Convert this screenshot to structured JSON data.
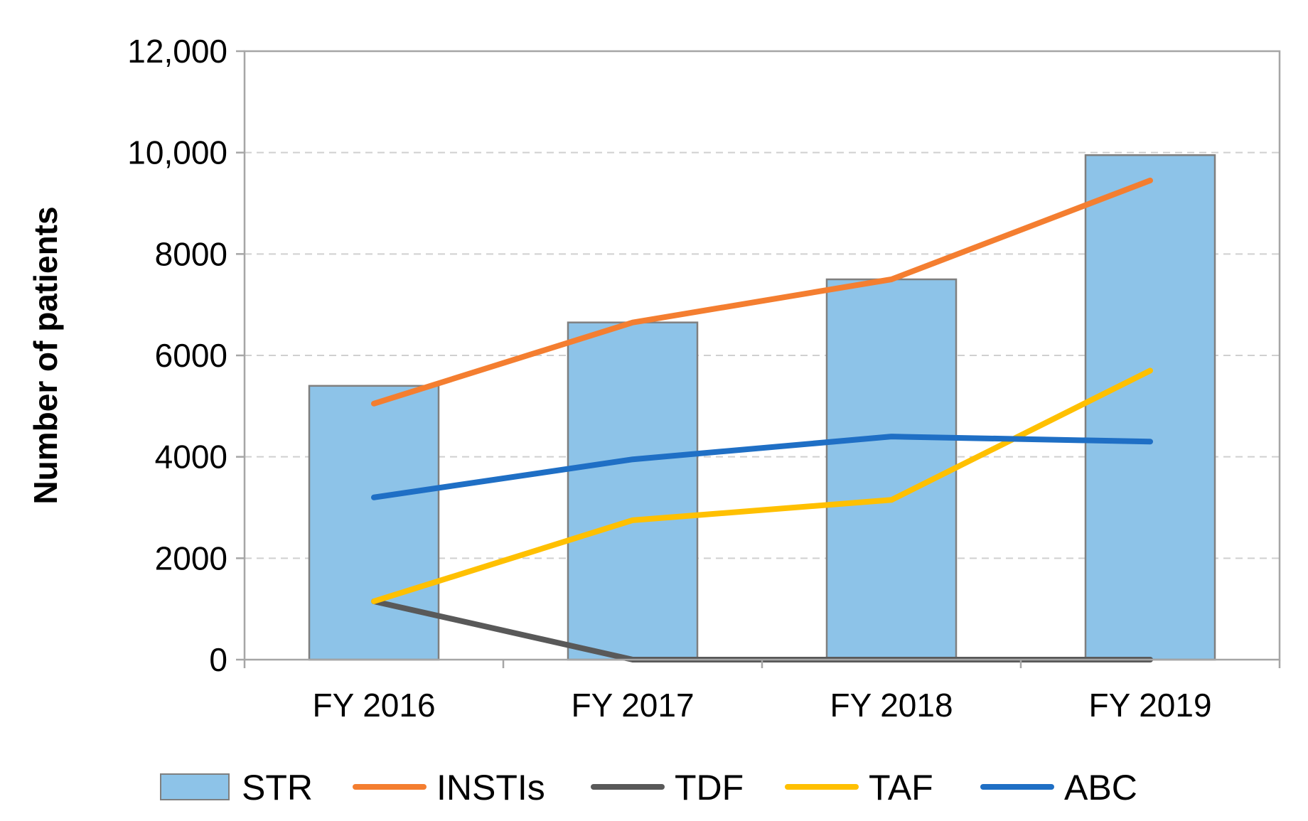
{
  "chart_data": {
    "type": "bar",
    "title": "",
    "xlabel": "",
    "ylabel": "Number of patients",
    "ylim": [
      0,
      12000
    ],
    "yticks": [
      0,
      2000,
      4000,
      6000,
      8000,
      10000,
      12000
    ],
    "ytick_labels": [
      "0",
      "2000",
      "4000",
      "6000",
      "8000",
      "10,000",
      "12,000"
    ],
    "grid": true,
    "legend_position": "bottom",
    "categories": [
      "FY 2016",
      "FY 2017",
      "FY 2018",
      "FY 2019"
    ],
    "series": [
      {
        "name": "STR",
        "kind": "bar",
        "color": "#8DC3E8",
        "values": [
          5400,
          6650,
          7500,
          9950
        ]
      },
      {
        "name": "INSTIs",
        "kind": "line",
        "color": "#F47E30",
        "values": [
          5050,
          6650,
          7500,
          9450
        ]
      },
      {
        "name": "TDF",
        "kind": "line",
        "color": "#595959",
        "values": [
          1150,
          0,
          0,
          0
        ]
      },
      {
        "name": "TAF",
        "kind": "line",
        "color": "#FFC000",
        "values": [
          1150,
          2750,
          3150,
          5700
        ]
      },
      {
        "name": "ABC",
        "kind": "line",
        "color": "#1F6FC5",
        "values": [
          3200,
          3950,
          4400,
          4300
        ]
      }
    ]
  }
}
